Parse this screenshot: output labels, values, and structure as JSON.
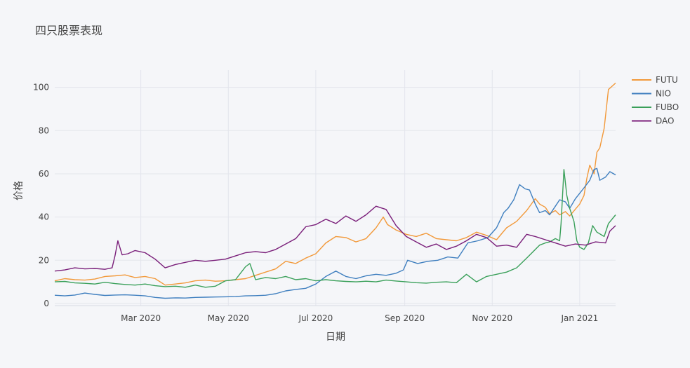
{
  "chart_data": {
    "type": "line",
    "title": "四只股票表现",
    "xlabel": "日期",
    "ylabel": "价格",
    "x_range": [
      "2020-01-01",
      "2021-01-26"
    ],
    "ylim": [
      -1,
      108
    ],
    "yticks": [
      0,
      20,
      40,
      60,
      80,
      100
    ],
    "xticks": [
      {
        "date": "2020-03-01",
        "label": "Mar 2020"
      },
      {
        "date": "2020-05-01",
        "label": "May 2020"
      },
      {
        "date": "2020-07-01",
        "label": "Jul 2020"
      },
      {
        "date": "2020-09-01",
        "label": "Sep 2020"
      },
      {
        "date": "2020-11-01",
        "label": "Nov 2020"
      },
      {
        "date": "2021-01-01",
        "label": "Jan 2021"
      }
    ],
    "grid": true,
    "legend_position": "top-right",
    "series": [
      {
        "name": "FUTU",
        "color": "#f2993a",
        "points": [
          [
            "2020-01-01",
            10.5
          ],
          [
            "2020-01-08",
            11.5
          ],
          [
            "2020-01-15",
            11.0
          ],
          [
            "2020-01-22",
            10.8
          ],
          [
            "2020-01-29",
            11.3
          ],
          [
            "2020-02-05",
            12.5
          ],
          [
            "2020-02-12",
            12.8
          ],
          [
            "2020-02-19",
            13.2
          ],
          [
            "2020-02-26",
            12.0
          ],
          [
            "2020-03-04",
            12.5
          ],
          [
            "2020-03-11",
            11.5
          ],
          [
            "2020-03-18",
            8.5
          ],
          [
            "2020-03-25",
            9.0
          ],
          [
            "2020-04-01",
            9.5
          ],
          [
            "2020-04-08",
            10.5
          ],
          [
            "2020-04-15",
            10.8
          ],
          [
            "2020-04-22",
            10.3
          ],
          [
            "2020-04-29",
            10.5
          ],
          [
            "2020-05-06",
            11.0
          ],
          [
            "2020-05-13",
            11.5
          ],
          [
            "2020-05-20",
            13.0
          ],
          [
            "2020-05-27",
            14.5
          ],
          [
            "2020-06-03",
            16.0
          ],
          [
            "2020-06-10",
            19.5
          ],
          [
            "2020-06-17",
            18.5
          ],
          [
            "2020-06-24",
            21.0
          ],
          [
            "2020-07-01",
            23.0
          ],
          [
            "2020-07-08",
            28.0
          ],
          [
            "2020-07-15",
            31.0
          ],
          [
            "2020-07-22",
            30.5
          ],
          [
            "2020-07-29",
            28.5
          ],
          [
            "2020-08-05",
            30.0
          ],
          [
            "2020-08-12",
            35.0
          ],
          [
            "2020-08-17",
            40.0
          ],
          [
            "2020-08-20",
            36.5
          ],
          [
            "2020-08-26",
            34.0
          ],
          [
            "2020-09-02",
            32.0
          ],
          [
            "2020-09-09",
            31.0
          ],
          [
            "2020-09-16",
            32.5
          ],
          [
            "2020-09-23",
            30.0
          ],
          [
            "2020-09-30",
            29.5
          ],
          [
            "2020-10-07",
            29.0
          ],
          [
            "2020-10-14",
            30.5
          ],
          [
            "2020-10-21",
            33.0
          ],
          [
            "2020-10-28",
            31.5
          ],
          [
            "2020-11-04",
            29.5
          ],
          [
            "2020-11-11",
            35.0
          ],
          [
            "2020-11-18",
            38.0
          ],
          [
            "2020-11-25",
            43.0
          ],
          [
            "2020-12-01",
            48.5
          ],
          [
            "2020-12-04",
            46.0
          ],
          [
            "2020-12-08",
            44.5
          ],
          [
            "2020-12-11",
            41.5
          ],
          [
            "2020-12-15",
            43.0
          ],
          [
            "2020-12-18",
            41.0
          ],
          [
            "2020-12-22",
            42.5
          ],
          [
            "2020-12-25",
            40.5
          ],
          [
            "2021-01-01",
            46.0
          ],
          [
            "2021-01-04",
            50.0
          ],
          [
            "2021-01-06",
            58.0
          ],
          [
            "2021-01-08",
            64.0
          ],
          [
            "2021-01-11",
            60.0
          ],
          [
            "2021-01-13",
            70.0
          ],
          [
            "2021-01-15",
            72.0
          ],
          [
            "2021-01-18",
            81.0
          ],
          [
            "2021-01-21",
            99.0
          ],
          [
            "2021-01-26",
            102.0
          ]
        ]
      },
      {
        "name": "NIO",
        "color": "#3f7fbf",
        "points": [
          [
            "2020-01-01",
            3.8
          ],
          [
            "2020-01-08",
            3.5
          ],
          [
            "2020-01-15",
            3.9
          ],
          [
            "2020-01-22",
            4.8
          ],
          [
            "2020-01-29",
            4.2
          ],
          [
            "2020-02-05",
            3.7
          ],
          [
            "2020-02-12",
            3.9
          ],
          [
            "2020-02-19",
            4.0
          ],
          [
            "2020-02-26",
            3.8
          ],
          [
            "2020-03-04",
            3.5
          ],
          [
            "2020-03-11",
            2.8
          ],
          [
            "2020-03-18",
            2.4
          ],
          [
            "2020-03-25",
            2.6
          ],
          [
            "2020-04-01",
            2.5
          ],
          [
            "2020-04-08",
            2.8
          ],
          [
            "2020-04-15",
            2.9
          ],
          [
            "2020-04-22",
            3.0
          ],
          [
            "2020-04-29",
            3.1
          ],
          [
            "2020-05-06",
            3.2
          ],
          [
            "2020-05-13",
            3.5
          ],
          [
            "2020-05-20",
            3.6
          ],
          [
            "2020-05-27",
            3.8
          ],
          [
            "2020-06-03",
            4.5
          ],
          [
            "2020-06-10",
            5.8
          ],
          [
            "2020-06-17",
            6.5
          ],
          [
            "2020-06-24",
            7.0
          ],
          [
            "2020-07-01",
            9.0
          ],
          [
            "2020-07-08",
            12.5
          ],
          [
            "2020-07-15",
            15.0
          ],
          [
            "2020-07-22",
            12.5
          ],
          [
            "2020-07-29",
            11.5
          ],
          [
            "2020-08-05",
            12.8
          ],
          [
            "2020-08-12",
            13.5
          ],
          [
            "2020-08-19",
            13.0
          ],
          [
            "2020-08-26",
            14.0
          ],
          [
            "2020-08-31",
            15.5
          ],
          [
            "2020-09-03",
            20.0
          ],
          [
            "2020-09-10",
            18.5
          ],
          [
            "2020-09-17",
            19.5
          ],
          [
            "2020-09-24",
            20.0
          ],
          [
            "2020-10-01",
            21.5
          ],
          [
            "2020-10-08",
            21.0
          ],
          [
            "2020-10-15",
            28.0
          ],
          [
            "2020-10-22",
            29.0
          ],
          [
            "2020-10-29",
            30.5
          ],
          [
            "2020-11-04",
            35.0
          ],
          [
            "2020-11-09",
            42.0
          ],
          [
            "2020-11-12",
            44.0
          ],
          [
            "2020-11-16",
            48.0
          ],
          [
            "2020-11-20",
            55.0
          ],
          [
            "2020-11-24",
            53.0
          ],
          [
            "2020-11-27",
            52.5
          ],
          [
            "2020-12-01",
            46.0
          ],
          [
            "2020-12-04",
            42.0
          ],
          [
            "2020-12-08",
            43.0
          ],
          [
            "2020-12-11",
            41.0
          ],
          [
            "2020-12-15",
            45.0
          ],
          [
            "2020-12-18",
            48.0
          ],
          [
            "2020-12-22",
            47.0
          ],
          [
            "2020-12-25",
            44.0
          ],
          [
            "2020-12-29",
            48.5
          ],
          [
            "2021-01-04",
            53.5
          ],
          [
            "2021-01-08",
            57.0
          ],
          [
            "2021-01-11",
            62.0
          ],
          [
            "2021-01-13",
            62.5
          ],
          [
            "2021-01-15",
            57.0
          ],
          [
            "2021-01-19",
            58.5
          ],
          [
            "2021-01-22",
            61.0
          ],
          [
            "2021-01-26",
            59.5
          ]
        ]
      },
      {
        "name": "FUBO",
        "color": "#3aa05a",
        "points": [
          [
            "2020-01-01",
            10.0
          ],
          [
            "2020-01-08",
            10.2
          ],
          [
            "2020-01-15",
            9.5
          ],
          [
            "2020-01-22",
            9.3
          ],
          [
            "2020-01-29",
            9.0
          ],
          [
            "2020-02-05",
            9.8
          ],
          [
            "2020-02-12",
            9.2
          ],
          [
            "2020-02-19",
            8.8
          ],
          [
            "2020-02-26",
            8.5
          ],
          [
            "2020-03-04",
            9.0
          ],
          [
            "2020-03-11",
            8.2
          ],
          [
            "2020-03-18",
            7.8
          ],
          [
            "2020-03-25",
            8.0
          ],
          [
            "2020-04-01",
            7.5
          ],
          [
            "2020-04-08",
            8.5
          ],
          [
            "2020-04-15",
            7.5
          ],
          [
            "2020-04-22",
            8.0
          ],
          [
            "2020-04-29",
            10.5
          ],
          [
            "2020-05-06",
            11.0
          ],
          [
            "2020-05-13",
            17.0
          ],
          [
            "2020-05-16",
            18.5
          ],
          [
            "2020-05-20",
            11.0
          ],
          [
            "2020-05-27",
            12.0
          ],
          [
            "2020-06-03",
            11.5
          ],
          [
            "2020-06-10",
            12.5
          ],
          [
            "2020-06-17",
            11.0
          ],
          [
            "2020-06-24",
            11.5
          ],
          [
            "2020-07-01",
            10.5
          ],
          [
            "2020-07-08",
            11.0
          ],
          [
            "2020-07-15",
            10.5
          ],
          [
            "2020-07-22",
            10.2
          ],
          [
            "2020-07-29",
            10.0
          ],
          [
            "2020-08-05",
            10.3
          ],
          [
            "2020-08-12",
            10.0
          ],
          [
            "2020-08-19",
            10.8
          ],
          [
            "2020-08-26",
            10.4
          ],
          [
            "2020-09-02",
            10.0
          ],
          [
            "2020-09-09",
            9.6
          ],
          [
            "2020-09-16",
            9.4
          ],
          [
            "2020-09-23",
            9.8
          ],
          [
            "2020-09-30",
            10.0
          ],
          [
            "2020-10-07",
            9.6
          ],
          [
            "2020-10-14",
            13.5
          ],
          [
            "2020-10-21",
            10.0
          ],
          [
            "2020-10-28",
            12.5
          ],
          [
            "2020-11-04",
            13.5
          ],
          [
            "2020-11-11",
            14.5
          ],
          [
            "2020-11-18",
            16.5
          ],
          [
            "2020-11-25",
            21.0
          ],
          [
            "2020-12-01",
            25.0
          ],
          [
            "2020-12-04",
            27.0
          ],
          [
            "2020-12-08",
            28.0
          ],
          [
            "2020-12-11",
            28.5
          ],
          [
            "2020-12-15",
            30.0
          ],
          [
            "2020-12-18",
            29.0
          ],
          [
            "2020-12-19",
            37.0
          ],
          [
            "2020-12-21",
            62.0
          ],
          [
            "2020-12-23",
            50.0
          ],
          [
            "2020-12-25",
            44.0
          ],
          [
            "2020-12-28",
            38.0
          ],
          [
            "2020-12-30",
            29.0
          ],
          [
            "2021-01-01",
            26.0
          ],
          [
            "2021-01-04",
            25.0
          ],
          [
            "2021-01-07",
            28.0
          ],
          [
            "2021-01-10",
            36.0
          ],
          [
            "2021-01-13",
            33.0
          ],
          [
            "2021-01-18",
            31.0
          ],
          [
            "2021-01-21",
            37.0
          ],
          [
            "2021-01-26",
            41.0
          ]
        ]
      },
      {
        "name": "DAO",
        "color": "#7a1f7a",
        "points": [
          [
            "2020-01-01",
            15.0
          ],
          [
            "2020-01-08",
            15.5
          ],
          [
            "2020-01-15",
            16.5
          ],
          [
            "2020-01-22",
            16.0
          ],
          [
            "2020-01-29",
            16.2
          ],
          [
            "2020-02-05",
            15.8
          ],
          [
            "2020-02-10",
            16.5
          ],
          [
            "2020-02-12",
            22.0
          ],
          [
            "2020-02-14",
            29.0
          ],
          [
            "2020-02-17",
            22.5
          ],
          [
            "2020-02-21",
            23.0
          ],
          [
            "2020-02-26",
            24.5
          ],
          [
            "2020-03-04",
            23.5
          ],
          [
            "2020-03-11",
            20.5
          ],
          [
            "2020-03-18",
            16.5
          ],
          [
            "2020-03-25",
            18.0
          ],
          [
            "2020-04-01",
            19.0
          ],
          [
            "2020-04-08",
            20.0
          ],
          [
            "2020-04-15",
            19.5
          ],
          [
            "2020-04-22",
            20.0
          ],
          [
            "2020-04-29",
            20.5
          ],
          [
            "2020-05-06",
            22.0
          ],
          [
            "2020-05-13",
            23.5
          ],
          [
            "2020-05-20",
            24.0
          ],
          [
            "2020-05-27",
            23.5
          ],
          [
            "2020-06-03",
            25.0
          ],
          [
            "2020-06-10",
            27.5
          ],
          [
            "2020-06-17",
            30.0
          ],
          [
            "2020-06-24",
            35.5
          ],
          [
            "2020-07-01",
            36.5
          ],
          [
            "2020-07-08",
            39.0
          ],
          [
            "2020-07-15",
            37.0
          ],
          [
            "2020-07-22",
            40.5
          ],
          [
            "2020-07-29",
            38.0
          ],
          [
            "2020-08-05",
            41.0
          ],
          [
            "2020-08-12",
            45.0
          ],
          [
            "2020-08-19",
            43.5
          ],
          [
            "2020-08-26",
            36.0
          ],
          [
            "2020-09-02",
            31.0
          ],
          [
            "2020-09-09",
            28.5
          ],
          [
            "2020-09-16",
            26.0
          ],
          [
            "2020-09-23",
            27.5
          ],
          [
            "2020-09-30",
            25.0
          ],
          [
            "2020-10-07",
            26.5
          ],
          [
            "2020-10-14",
            29.0
          ],
          [
            "2020-10-21",
            32.0
          ],
          [
            "2020-10-28",
            30.5
          ],
          [
            "2020-11-04",
            26.5
          ],
          [
            "2020-11-11",
            27.0
          ],
          [
            "2020-11-18",
            26.0
          ],
          [
            "2020-11-25",
            32.0
          ],
          [
            "2020-12-01",
            31.0
          ],
          [
            "2020-12-08",
            29.5
          ],
          [
            "2020-12-15",
            28.0
          ],
          [
            "2020-12-22",
            26.5
          ],
          [
            "2020-12-29",
            27.5
          ],
          [
            "2021-01-05",
            27.0
          ],
          [
            "2021-01-12",
            28.5
          ],
          [
            "2021-01-19",
            28.0
          ],
          [
            "2021-01-22",
            33.5
          ],
          [
            "2021-01-26",
            36.0
          ]
        ]
      }
    ]
  }
}
